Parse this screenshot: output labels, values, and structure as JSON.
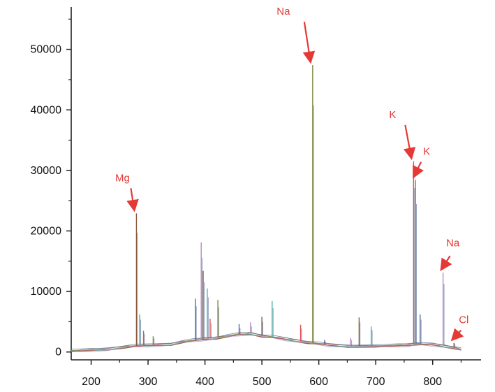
{
  "chart_data": {
    "type": "line",
    "title": "",
    "xlabel": "",
    "ylabel": "",
    "xlim": [
      165,
      885
    ],
    "ylim": [
      -1300,
      57000
    ],
    "x_ticks": [
      200,
      300,
      400,
      500,
      600,
      700,
      800
    ],
    "y_ticks": [
      0,
      10000,
      20000,
      30000,
      40000,
      50000
    ],
    "x_tick_labels": [
      "200",
      "300",
      "400",
      "500",
      "600",
      "700",
      "800"
    ],
    "y_tick_labels": [
      "0",
      "10000",
      "20000",
      "30000",
      "40000",
      "50000"
    ],
    "grid": false,
    "legend": "none",
    "colors": {
      "axis": "#222222",
      "annotation": "#e53935",
      "series": [
        "#8b5a3c",
        "#4fb3a9",
        "#d9534f",
        "#7a8b3c",
        "#5b6f9e",
        "#b48cc0"
      ]
    },
    "baseline": [
      [
        165,
        180
      ],
      [
        200,
        300
      ],
      [
        230,
        500
      ],
      [
        260,
        900
      ],
      [
        278,
        1000
      ],
      [
        300,
        1100
      ],
      [
        340,
        1300
      ],
      [
        360,
        1700
      ],
      [
        380,
        1900
      ],
      [
        400,
        2150
      ],
      [
        420,
        2350
      ],
      [
        440,
        2650
      ],
      [
        460,
        2900
      ],
      [
        480,
        3050
      ],
      [
        500,
        2700
      ],
      [
        520,
        2450
      ],
      [
        540,
        2150
      ],
      [
        560,
        1900
      ],
      [
        580,
        1600
      ],
      [
        600,
        1350
      ],
      [
        620,
        1150
      ],
      [
        650,
        1000
      ],
      [
        700,
        980
      ],
      [
        740,
        1050
      ],
      [
        760,
        1200
      ],
      [
        770,
        1400
      ],
      [
        780,
        1300
      ],
      [
        800,
        1200
      ],
      [
        820,
        1000
      ],
      [
        840,
        700
      ],
      [
        850,
        400
      ]
    ],
    "peaks": [
      {
        "x": 279.6,
        "y": 22900
      },
      {
        "x": 285.2,
        "y": 6200
      },
      {
        "x": 292,
        "y": 3500
      },
      {
        "x": 309,
        "y": 2600
      },
      {
        "x": 383,
        "y": 8800
      },
      {
        "x": 393.4,
        "y": 18100
      },
      {
        "x": 396.8,
        "y": 13400
      },
      {
        "x": 404,
        "y": 10500
      },
      {
        "x": 409,
        "y": 5500
      },
      {
        "x": 422.7,
        "y": 8600
      },
      {
        "x": 460,
        "y": 4600
      },
      {
        "x": 480,
        "y": 4900
      },
      {
        "x": 500,
        "y": 5800
      },
      {
        "x": 518,
        "y": 8400
      },
      {
        "x": 568,
        "y": 4500
      },
      {
        "x": 589.2,
        "y": 47400
      },
      {
        "x": 610,
        "y": 2000
      },
      {
        "x": 656,
        "y": 2300
      },
      {
        "x": 670.8,
        "y": 5700
      },
      {
        "x": 692,
        "y": 4200
      },
      {
        "x": 766.5,
        "y": 31500
      },
      {
        "x": 769.9,
        "y": 28400
      },
      {
        "x": 778,
        "y": 6200
      },
      {
        "x": 818.3,
        "y": 13100
      },
      {
        "x": 837.5,
        "y": 1500
      }
    ],
    "annotations": [
      {
        "text": "Mg",
        "x": 279.6,
        "y": 22900
      },
      {
        "text": "Na",
        "x": 589.2,
        "y": 47400
      },
      {
        "text": "K",
        "x": 766.5,
        "y": 31500
      },
      {
        "text": "K",
        "x": 769.9,
        "y": 28400
      },
      {
        "text": "Na",
        "x": 818.3,
        "y": 13100
      },
      {
        "text": "Cl",
        "x": 837.5,
        "y": 1500
      }
    ]
  }
}
